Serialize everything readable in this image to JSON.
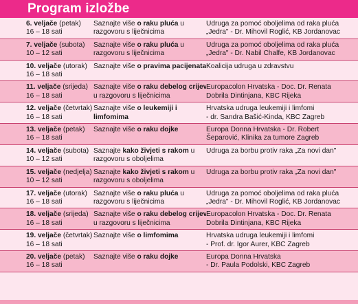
{
  "header": {
    "title": "Program izložbe"
  },
  "rows": [
    {
      "date_bold": "6. veljače",
      "day": " (petak)",
      "time": "16 – 18 sati",
      "topic_pre": "Saznajte više ",
      "topic_bold": "o raku pluća",
      "topic_post": " u",
      "topic_line2": "razgovoru s liječnicima",
      "org1": "Udruga za pomoć oboljelima od raka pluća",
      "org2": "„Jedra\" - Dr. Mihovil Roglić, KB Jordanovac"
    },
    {
      "date_bold": "7. veljače",
      "day": " (subota)",
      "time": "10 – 12 sati",
      "topic_pre": "Saznajte više ",
      "topic_bold": "o raku pluća",
      "topic_post": " u",
      "topic_line2": "razgovoru s liječnicima",
      "org1": "Udruga za pomoć oboljelima od raka pluća",
      "org2": "„Jedra\" - Dr. Nabil Chalfe, KB Jordanovac"
    },
    {
      "date_bold": "10. veljače",
      "day": " (utorak)",
      "time": "16 – 18 sati",
      "topic_pre": "Saznajte više ",
      "topic_bold": "o pravima pacijenata",
      "topic_post": "",
      "topic_line2": "",
      "org1": "Koalicija udruga u zdravstvu",
      "org2": ""
    },
    {
      "date_bold": "11. veljače",
      "day": " (srijeda)",
      "time": "16 – 18 sati",
      "topic_pre": "Saznajte više ",
      "topic_bold": "o raku debelog crijeva",
      "topic_post": "",
      "topic_line2": "u razgovoru s liječnicima",
      "org1": "Europacolon Hrvatska - Doc. Dr. Renata",
      "org2": "Dobrila Dintinjana, KBC Rijeka"
    },
    {
      "date_bold": "12. veljače",
      "day": " (četvrtak)",
      "time": "16 – 18 sati",
      "topic_pre": "Saznajte više ",
      "topic_bold": "o leukemiji i",
      "topic_post": "",
      "topic_line2_bold": "limfomima",
      "org1": "Hrvatska udruga leukemiji i limfomi",
      "org2": "- dr. Sandra Bašić-Kinda, KBC Zagreb"
    },
    {
      "date_bold": "13. veljače",
      "day": " (petak)",
      "time": "16 – 18 sati",
      "topic_pre": "Saznajte više ",
      "topic_bold": "o raku dojke",
      "topic_post": "",
      "topic_line2": "",
      "org1": "Europa  Donna Hrvatska - Dr. Robert",
      "org2": "Šeparović, Klinika za tumore Zagreb"
    },
    {
      "date_bold": "14. veljače",
      "day": " (subota)",
      "time": "10 – 12 sati",
      "topic_pre": "Saznajte ",
      "topic_bold": "kako živjeti s rakom",
      "topic_post": " u",
      "topic_line2": "razgovoru s oboljelima",
      "org1": "Udruga za borbu protiv raka „Za novi dan\"",
      "org2": ""
    },
    {
      "date_bold": "15. veljače",
      "day": " (nedjelja)",
      "time": "10 – 12 sati",
      "topic_pre": "Saznajte ",
      "topic_bold": "kako živjeti s rakom",
      "topic_post": " u",
      "topic_line2": "razgovoru s oboljelima",
      "org1": "Udruga za borbu protiv raka „Za novi dan\"",
      "org2": ""
    },
    {
      "date_bold": "17. veljače",
      "day": " (utorak)",
      "time": "16 – 18 sati",
      "topic_pre": "Saznajte više ",
      "topic_bold": "o raku pluća",
      "topic_post": " u",
      "topic_line2": "razgovoru s liječnicima",
      "org1": "Udruga za pomoć oboljelima od raka pluća",
      "org2": "„Jedra\" - Dr. Mihovil Roglić, KB Jordanovac"
    },
    {
      "date_bold": "18. veljače",
      "day": " (srijeda)",
      "time": "16 – 18 sati",
      "topic_pre": "Saznajte više ",
      "topic_bold": "o raku debelog crijeva",
      "topic_post": "",
      "topic_line2": "u razgovoru s liječnicima",
      "org1": "Europacolon Hrvatska - Doc. Dr. Renata",
      "org2": "Dobrila Dintinjana, KBC Rijeka"
    },
    {
      "date_bold": "19. veljače",
      "day": " (četvrtak)",
      "time": "16 – 18 sati",
      "topic_pre": "Saznajte više ",
      "topic_bold": "o limfomima",
      "topic_post": "",
      "topic_line2": "",
      "org1": "Hrvatska udruga leukemiji i limfomi",
      "org2": "- Prof. dr. Igor Aurer, KBC Zagreb"
    },
    {
      "date_bold": "20. veljače",
      "day": " (petak)",
      "time": "16 – 18 sati",
      "topic_pre": "Saznajte više ",
      "topic_bold": "o raku dojke",
      "topic_post": "",
      "topic_line2": "",
      "org1": "Europa  Donna Hrvatska",
      "org2": "- Dr. Paula Podolski, KBC Zagreb"
    }
  ],
  "colors": {
    "header": "#ec2a8a",
    "row_light": "#fde6ee",
    "row_dark": "#f7b9cc",
    "divider": "#c9416f"
  }
}
